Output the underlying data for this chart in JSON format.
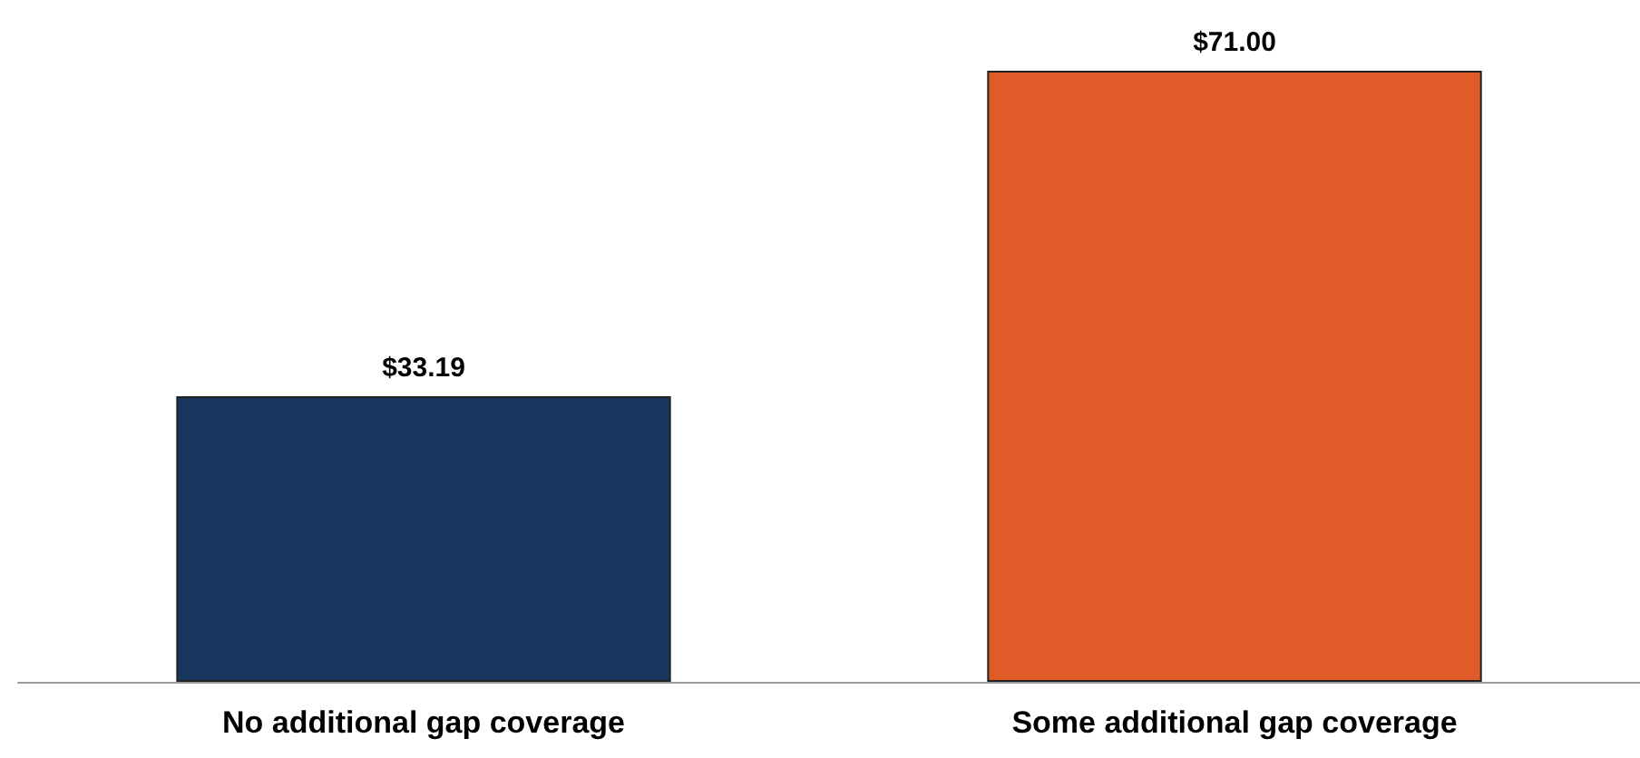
{
  "chart_data": {
    "type": "bar",
    "categories": [
      "No additional gap coverage",
      "Some additional gap coverage"
    ],
    "values": [
      33.19,
      71.0
    ],
    "colors": [
      "#17375e",
      "#e05b27"
    ],
    "value_labels": [
      "$33.19",
      "$71.00"
    ]
  }
}
